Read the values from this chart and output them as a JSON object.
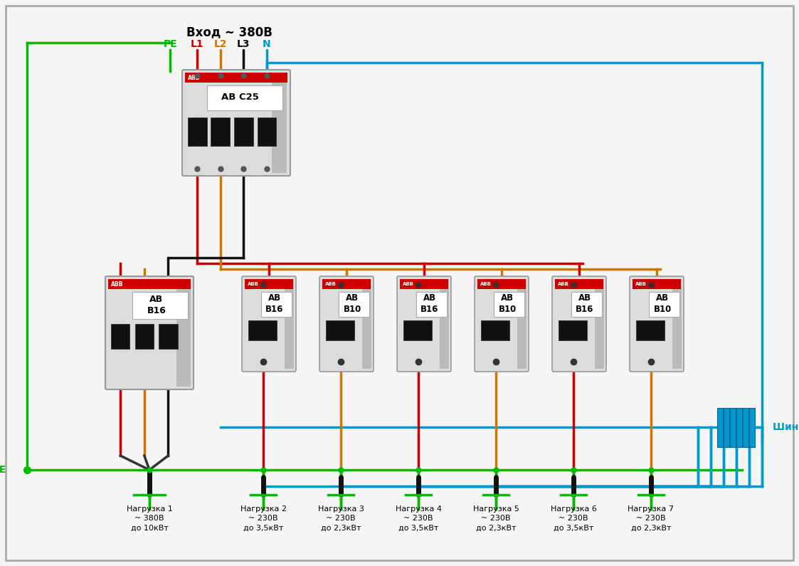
{
  "title": "Вход ~ 380В",
  "bg": "#f5f5f5",
  "border_color": "#aaaaaa",
  "C_PE": "#00bb00",
  "C_L1": "#cc0000",
  "C_L2": "#cc7700",
  "C_L3": "#111111",
  "C_N": "#0099cc",
  "shina_pe": "Шина PE",
  "shina_n": "Шина N",
  "loads": [
    {
      "name": "Нагрузка 1",
      "v": "~ 380В",
      "p": "до 10кВт"
    },
    {
      "name": "Нагрузка 2",
      "v": "~ 230В",
      "p": "до 3,5кВт"
    },
    {
      "name": "Нагрузка 3",
      "v": "~ 230В",
      "p": "до 2,3кВт"
    },
    {
      "name": "Нагрузка 4",
      "v": "~ 230В",
      "p": "до 3,5кВт"
    },
    {
      "name": "Нагрузка 5",
      "v": "~ 230В",
      "p": "до 2,3кВт"
    },
    {
      "name": "Нагрузка 6",
      "v": "~ 230В",
      "p": "до 3,5кВт"
    },
    {
      "name": "Нагрузка 7",
      "v": "~ 230В",
      "p": "до 2,3кВт"
    }
  ]
}
